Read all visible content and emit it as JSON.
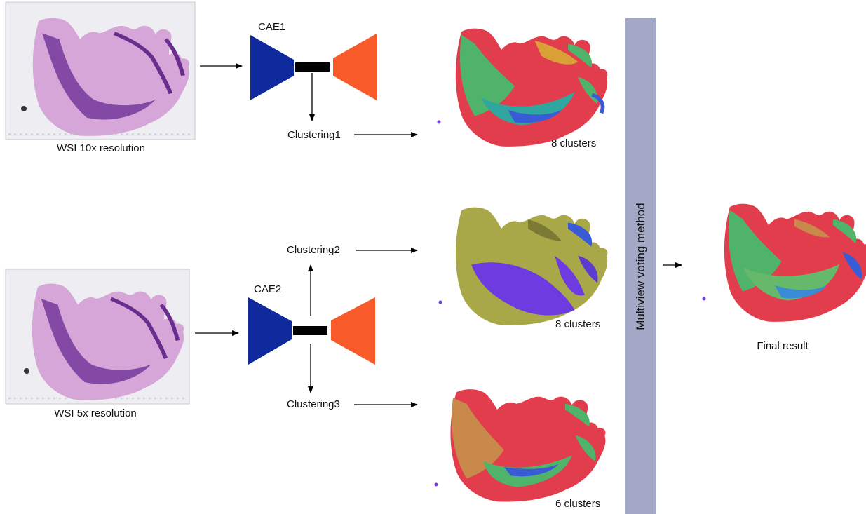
{
  "inputs": {
    "wsi_10x_label": "WSI 10x resolution",
    "wsi_5x_label": "WSI 5x resolution"
  },
  "models": {
    "cae1_label": "CAE1",
    "cae2_label": "CAE2"
  },
  "clustering": {
    "clustering1_label": "Clustering1",
    "clustering2_label": "Clustering2",
    "clustering3_label": "Clustering3"
  },
  "results": {
    "map1_caption": "8 clusters",
    "map2_caption": "8 clusters",
    "map3_caption": "6 clusters",
    "final_caption": "Final result"
  },
  "voting": {
    "label": "Multiview voting method"
  },
  "colors": {
    "encoder": "#0f2a9c",
    "decoder": "#f85a2a",
    "latent": "#000000",
    "voting_bar": "#a3a8c6",
    "tissue_light": "#d6a6d8",
    "tissue_dark": "#7a3f9e",
    "slide_bg": "#eeeef2",
    "cluster_red": "#e23d4d",
    "cluster_green": "#4fb46a",
    "cluster_teal": "#2fa7a0",
    "cluster_blue": "#3a5bd6",
    "cluster_orange": "#d9a036",
    "cluster_olive": "#a9a848",
    "cluster_purple": "#6d3be0"
  }
}
